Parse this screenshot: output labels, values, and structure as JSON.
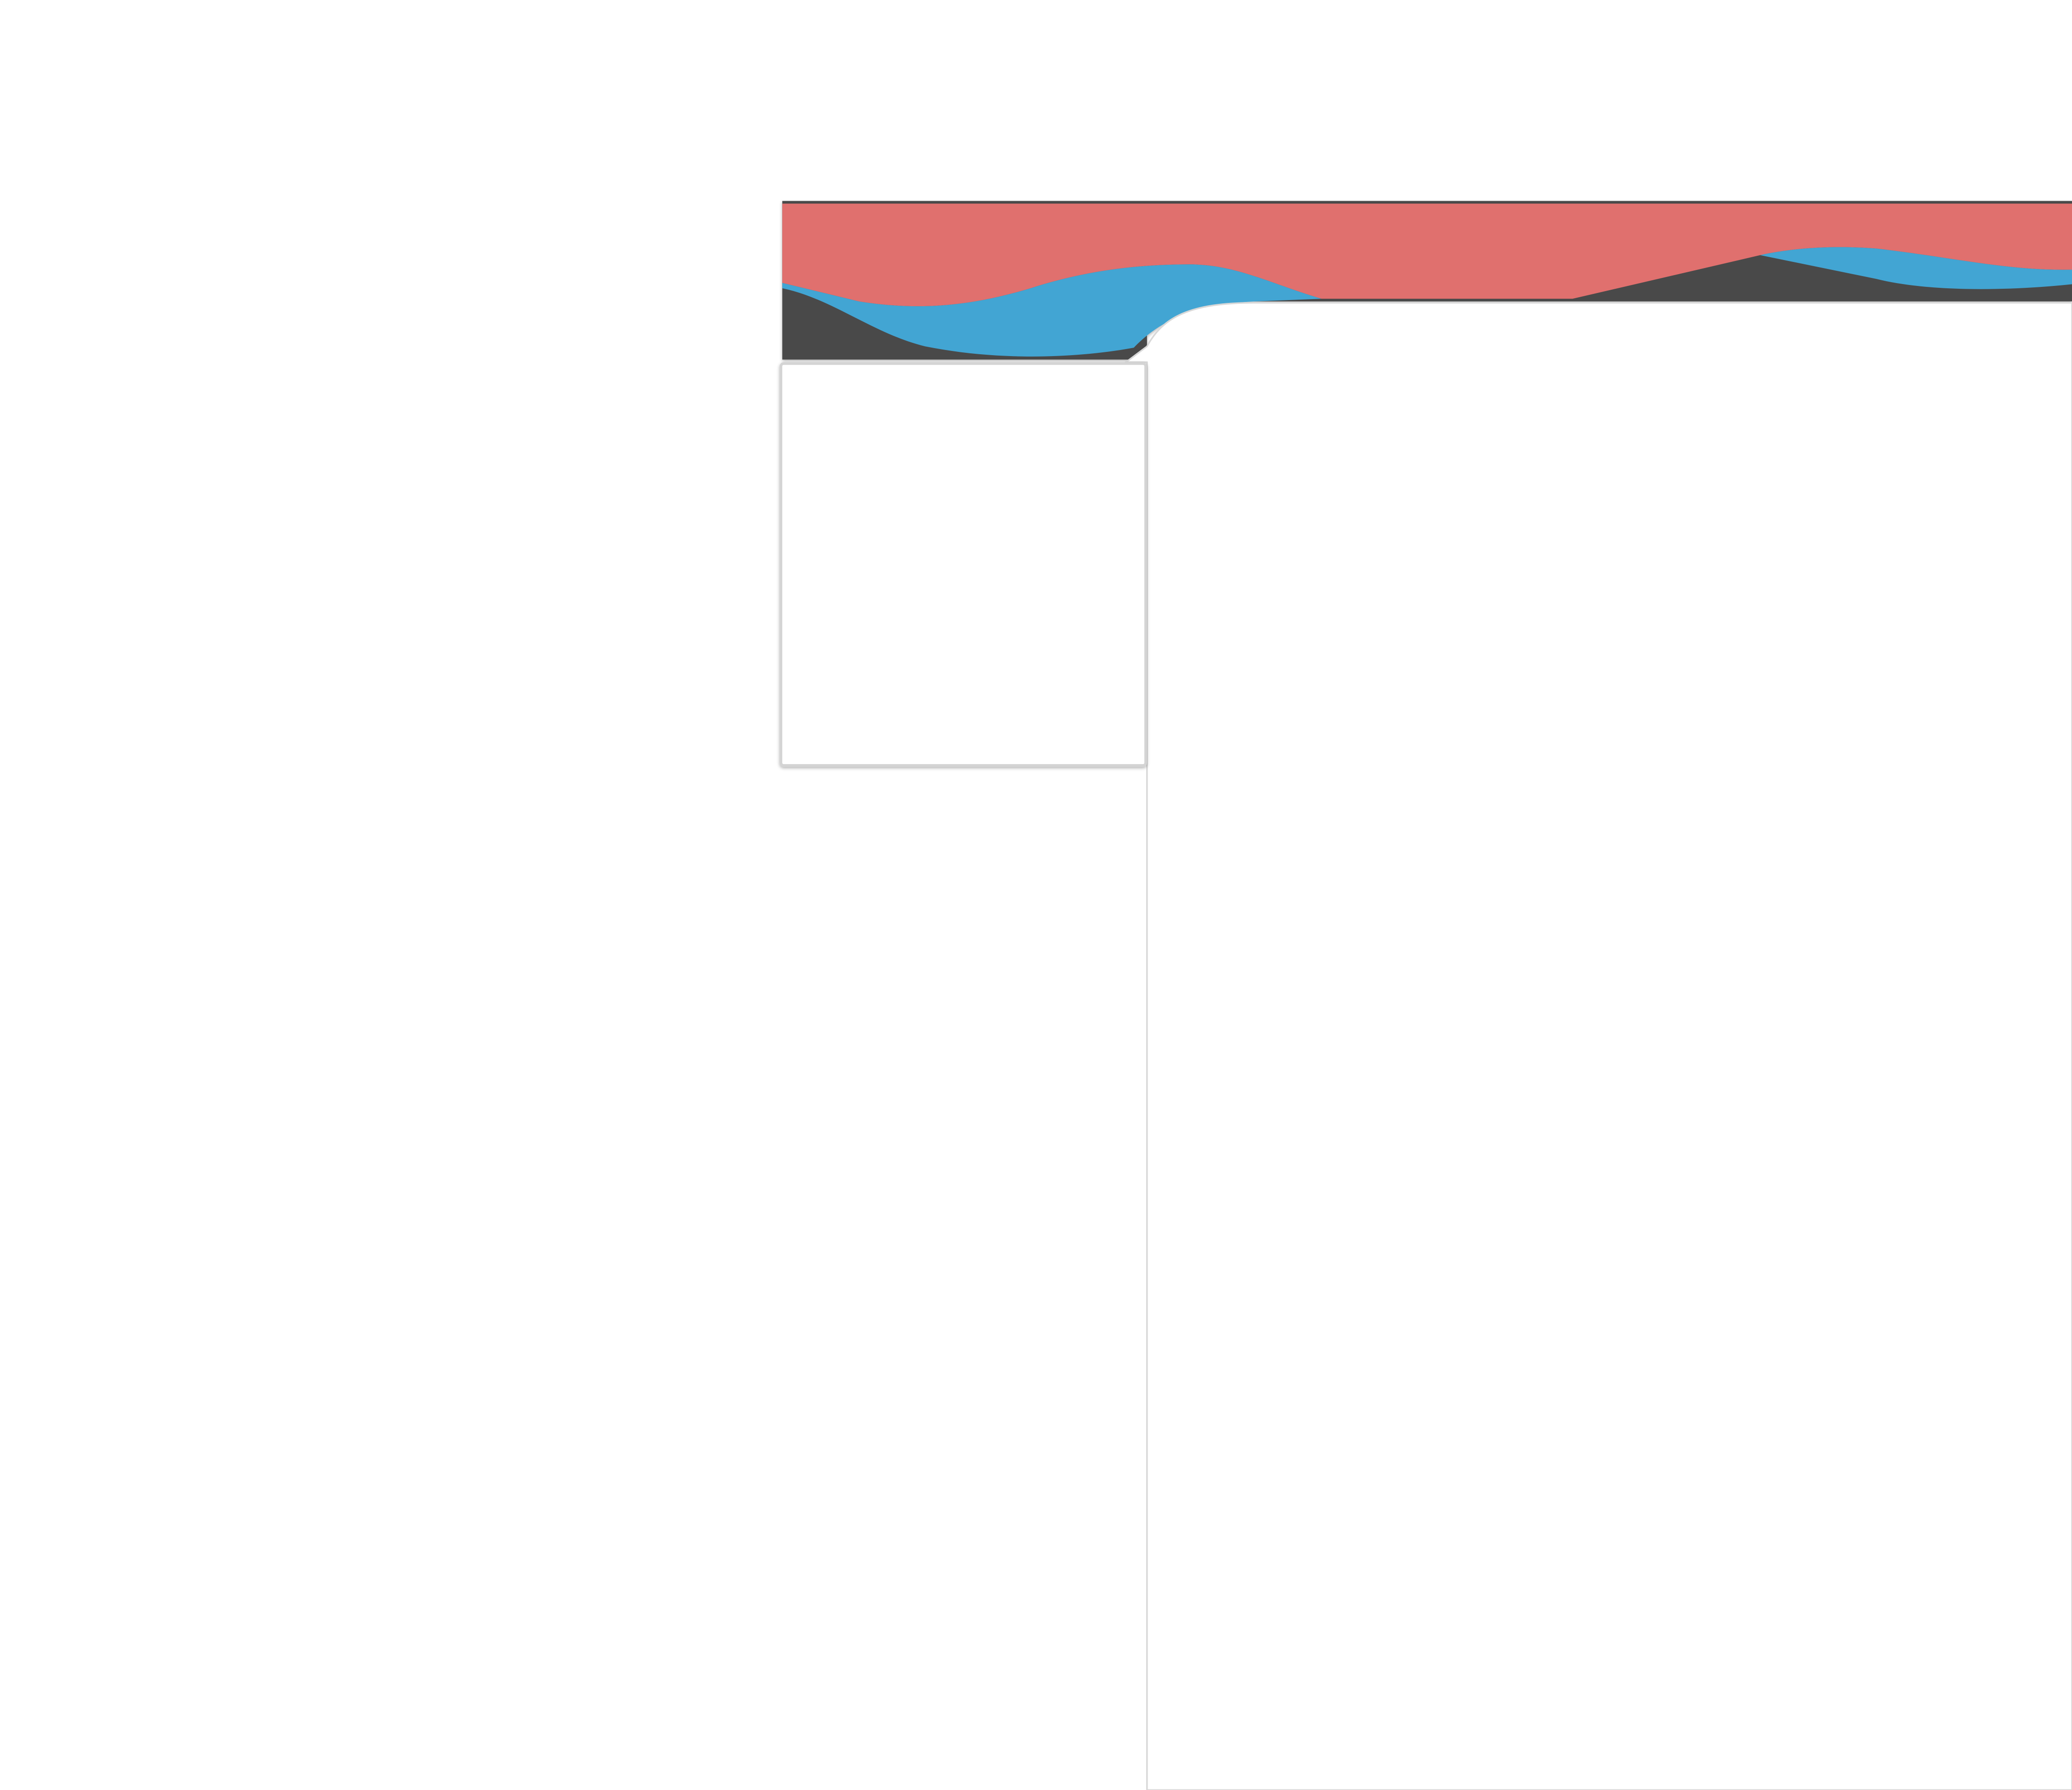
{
  "theme": {
    "background": "#ffffff",
    "header_dark": "#4a4a4a",
    "header_red": "#e06f6e",
    "header_blue": "#43a5d3",
    "panel_border": "#d4d4d4"
  }
}
